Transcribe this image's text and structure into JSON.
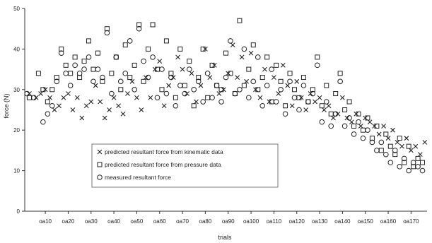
{
  "chart_data": {
    "type": "scatter",
    "title": "",
    "xlabel": "trials",
    "ylabel": "force (N)",
    "ylim": [
      0,
      50
    ],
    "yticks": [
      0,
      10,
      20,
      30,
      40,
      50
    ],
    "xlim": [
      1,
      177
    ],
    "xticks": [
      {
        "x": 10,
        "label": "oa10"
      },
      {
        "x": 20,
        "label": "oa20"
      },
      {
        "x": 30,
        "label": "oa30"
      },
      {
        "x": 40,
        "label": "oa40"
      },
      {
        "x": 50,
        "label": "oa50"
      },
      {
        "x": 60,
        "label": "oa60"
      },
      {
        "x": 70,
        "label": "oa70"
      },
      {
        "x": 80,
        "label": "oa80"
      },
      {
        "x": 90,
        "label": "oa90"
      },
      {
        "x": 100,
        "label": "oa100"
      },
      {
        "x": 110,
        "label": "oa110"
      },
      {
        "x": 120,
        "label": "oa120"
      },
      {
        "x": 130,
        "label": "oa130"
      },
      {
        "x": 140,
        "label": "oa140"
      },
      {
        "x": 150,
        "label": "oa150"
      },
      {
        "x": 160,
        "label": "oa160"
      },
      {
        "x": 170,
        "label": "oa170"
      }
    ],
    "grid": false,
    "legend_position": "inside-bottom-left",
    "series": [
      {
        "name": "predicted resultant force from kinematic data",
        "marker": "x",
        "points": [
          [
            3,
            29
          ],
          [
            6,
            28
          ],
          [
            8,
            29
          ],
          [
            10,
            30
          ],
          [
            12,
            28
          ],
          [
            14,
            25
          ],
          [
            16,
            26
          ],
          [
            18,
            28
          ],
          [
            20,
            29
          ],
          [
            22,
            25
          ],
          [
            24,
            28
          ],
          [
            26,
            23
          ],
          [
            28,
            26
          ],
          [
            30,
            27
          ],
          [
            32,
            31
          ],
          [
            34,
            27
          ],
          [
            36,
            23
          ],
          [
            38,
            25
          ],
          [
            40,
            28
          ],
          [
            42,
            26
          ],
          [
            44,
            24
          ],
          [
            46,
            29
          ],
          [
            48,
            32
          ],
          [
            50,
            28
          ],
          [
            52,
            25
          ],
          [
            54,
            33
          ],
          [
            56,
            28
          ],
          [
            58,
            35
          ],
          [
            60,
            37
          ],
          [
            62,
            26
          ],
          [
            64,
            31
          ],
          [
            66,
            33
          ],
          [
            68,
            38
          ],
          [
            70,
            35
          ],
          [
            72,
            29
          ],
          [
            74,
            34
          ],
          [
            76,
            27
          ],
          [
            78,
            31
          ],
          [
            80,
            40
          ],
          [
            82,
            33
          ],
          [
            84,
            36
          ],
          [
            86,
            29
          ],
          [
            88,
            30
          ],
          [
            90,
            34
          ],
          [
            92,
            41
          ],
          [
            94,
            33
          ],
          [
            96,
            38
          ],
          [
            98,
            32
          ],
          [
            100,
            39
          ],
          [
            102,
            30
          ],
          [
            104,
            28
          ],
          [
            106,
            35
          ],
          [
            108,
            27
          ],
          [
            110,
            33
          ],
          [
            112,
            29
          ],
          [
            114,
            36
          ],
          [
            116,
            31
          ],
          [
            118,
            26
          ],
          [
            120,
            32
          ],
          [
            122,
            28
          ],
          [
            124,
            25
          ],
          [
            126,
            29
          ],
          [
            128,
            27
          ],
          [
            130,
            28
          ],
          [
            132,
            25
          ],
          [
            134,
            26
          ],
          [
            136,
            23
          ],
          [
            138,
            24
          ],
          [
            140,
            28
          ],
          [
            142,
            23
          ],
          [
            144,
            22
          ],
          [
            146,
            24
          ],
          [
            148,
            21
          ],
          [
            150,
            23
          ],
          [
            152,
            22
          ],
          [
            154,
            21
          ],
          [
            156,
            19
          ],
          [
            158,
            21
          ],
          [
            160,
            18
          ],
          [
            162,
            20
          ],
          [
            164,
            17
          ],
          [
            166,
            16
          ],
          [
            168,
            18
          ],
          [
            170,
            15
          ],
          [
            172,
            16
          ],
          [
            174,
            14
          ],
          [
            176,
            17
          ]
        ]
      },
      {
        "name": "predicted resultant force from pressure data",
        "marker": "square",
        "points": [
          [
            3,
            28
          ],
          [
            7,
            34
          ],
          [
            9,
            30
          ],
          [
            11,
            27
          ],
          [
            13,
            30
          ],
          [
            15,
            33
          ],
          [
            17,
            40
          ],
          [
            19,
            36
          ],
          [
            21,
            34
          ],
          [
            23,
            38
          ],
          [
            25,
            33
          ],
          [
            27,
            37
          ],
          [
            29,
            42
          ],
          [
            31,
            35
          ],
          [
            33,
            39
          ],
          [
            35,
            32
          ],
          [
            37,
            45
          ],
          [
            39,
            34
          ],
          [
            41,
            38
          ],
          [
            43,
            30
          ],
          [
            45,
            41
          ],
          [
            47,
            33
          ],
          [
            49,
            36
          ],
          [
            51,
            46
          ],
          [
            53,
            32
          ],
          [
            55,
            40
          ],
          [
            57,
            46
          ],
          [
            59,
            35
          ],
          [
            61,
            30
          ],
          [
            63,
            42
          ],
          [
            65,
            34
          ],
          [
            67,
            28
          ],
          [
            69,
            40
          ],
          [
            71,
            31
          ],
          [
            73,
            37
          ],
          [
            75,
            26
          ],
          [
            77,
            33
          ],
          [
            79,
            40
          ],
          [
            81,
            28
          ],
          [
            83,
            36
          ],
          [
            85,
            31
          ],
          [
            87,
            30
          ],
          [
            89,
            39
          ],
          [
            91,
            34
          ],
          [
            93,
            29
          ],
          [
            95,
            47
          ],
          [
            97,
            31
          ],
          [
            99,
            35
          ],
          [
            101,
            41
          ],
          [
            103,
            30
          ],
          [
            105,
            33
          ],
          [
            107,
            38
          ],
          [
            109,
            27
          ],
          [
            111,
            36
          ],
          [
            113,
            32
          ],
          [
            115,
            26
          ],
          [
            117,
            34
          ],
          [
            119,
            30
          ],
          [
            121,
            28
          ],
          [
            123,
            33
          ],
          [
            125,
            27
          ],
          [
            127,
            30
          ],
          [
            129,
            38
          ],
          [
            131,
            26
          ],
          [
            133,
            31
          ],
          [
            135,
            24
          ],
          [
            137,
            29
          ],
          [
            139,
            34
          ],
          [
            141,
            25
          ],
          [
            143,
            27
          ],
          [
            145,
            21
          ],
          [
            147,
            24
          ],
          [
            149,
            20
          ],
          [
            151,
            23
          ],
          [
            153,
            18
          ],
          [
            155,
            21
          ],
          [
            157,
            15
          ],
          [
            159,
            19
          ],
          [
            161,
            16
          ],
          [
            163,
            14
          ],
          [
            165,
            18
          ],
          [
            167,
            12
          ],
          [
            169,
            16
          ],
          [
            171,
            11
          ],
          [
            173,
            13
          ],
          [
            175,
            12
          ]
        ]
      },
      {
        "name": "measured resultant force",
        "marker": "circle",
        "points": [
          [
            2,
            29
          ],
          [
            5,
            28
          ],
          [
            9,
            22
          ],
          [
            11,
            24
          ],
          [
            13,
            26
          ],
          [
            15,
            32
          ],
          [
            17,
            39
          ],
          [
            19,
            34
          ],
          [
            21,
            31
          ],
          [
            23,
            36
          ],
          [
            25,
            34
          ],
          [
            27,
            35
          ],
          [
            29,
            38
          ],
          [
            31,
            32
          ],
          [
            33,
            35
          ],
          [
            35,
            33
          ],
          [
            37,
            44
          ],
          [
            39,
            29
          ],
          [
            41,
            38
          ],
          [
            43,
            32
          ],
          [
            45,
            34
          ],
          [
            47,
            42
          ],
          [
            49,
            30
          ],
          [
            51,
            45
          ],
          [
            53,
            37
          ],
          [
            55,
            33
          ],
          [
            57,
            38
          ],
          [
            59,
            28
          ],
          [
            61,
            35
          ],
          [
            63,
            29
          ],
          [
            65,
            33
          ],
          [
            67,
            26
          ],
          [
            69,
            31
          ],
          [
            71,
            29
          ],
          [
            73,
            35
          ],
          [
            75,
            30
          ],
          [
            77,
            32
          ],
          [
            79,
            27
          ],
          [
            81,
            34
          ],
          [
            83,
            28
          ],
          [
            85,
            31
          ],
          [
            87,
            27
          ],
          [
            89,
            33
          ],
          [
            91,
            42
          ],
          [
            93,
            29
          ],
          [
            95,
            30
          ],
          [
            97,
            40
          ],
          [
            99,
            28
          ],
          [
            101,
            32
          ],
          [
            103,
            38
          ],
          [
            105,
            26
          ],
          [
            107,
            31
          ],
          [
            109,
            35
          ],
          [
            111,
            27
          ],
          [
            113,
            30
          ],
          [
            115,
            24
          ],
          [
            117,
            32
          ],
          [
            119,
            28
          ],
          [
            121,
            25
          ],
          [
            123,
            31
          ],
          [
            125,
            27
          ],
          [
            127,
            29
          ],
          [
            129,
            36
          ],
          [
            131,
            22
          ],
          [
            133,
            27
          ],
          [
            135,
            21
          ],
          [
            137,
            24
          ],
          [
            139,
            32
          ],
          [
            141,
            21
          ],
          [
            143,
            23
          ],
          [
            145,
            19
          ],
          [
            147,
            22
          ],
          [
            149,
            18
          ],
          [
            151,
            20
          ],
          [
            153,
            17
          ],
          [
            155,
            15
          ],
          [
            157,
            17
          ],
          [
            159,
            14
          ],
          [
            161,
            12
          ],
          [
            163,
            15
          ],
          [
            165,
            11
          ],
          [
            167,
            13
          ],
          [
            169,
            10
          ],
          [
            171,
            12
          ],
          [
            173,
            11
          ],
          [
            175,
            10
          ]
        ]
      }
    ]
  }
}
